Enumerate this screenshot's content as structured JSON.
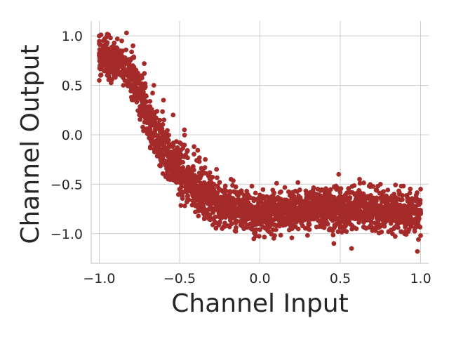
{
  "chart_data": {
    "type": "scatter",
    "title": "",
    "xlabel": "Channel Input",
    "ylabel": "Channel Output",
    "xlim": [
      -1.05,
      1.05
    ],
    "ylim": [
      -1.3,
      1.15
    ],
    "grid": true,
    "legend": "none",
    "color": "#a52a2a",
    "x_ticks": [
      -1.0,
      -0.5,
      0.0,
      0.5,
      1.0
    ],
    "x_tick_labels": [
      "−1.0",
      "−0.5",
      "0.0",
      "0.5",
      "1.0"
    ],
    "y_ticks": [
      1.0,
      0.5,
      0.0,
      -0.5,
      -1.0
    ],
    "y_tick_labels": [
      "1.0",
      "0.5",
      "0.0",
      "−0.5",
      "−1.0"
    ],
    "series": [
      {
        "x": [
          -1.0,
          -0.98,
          -0.95,
          -0.92,
          -0.9,
          -0.88,
          -0.85,
          -0.82,
          -0.8,
          -0.78,
          -0.75,
          -0.72,
          -0.7,
          -0.68,
          -0.65,
          -0.62,
          -0.6,
          -0.58,
          -0.55,
          -0.52,
          -0.5,
          -0.48,
          -0.45,
          -0.42,
          -0.4,
          -0.38,
          -0.35,
          -0.32,
          -0.3,
          -0.25,
          -0.2,
          -0.15,
          -0.1,
          -0.05,
          0.0,
          0.05,
          0.1,
          0.15,
          0.2,
          0.25,
          0.3,
          0.35,
          0.4,
          0.45,
          0.5,
          0.55,
          0.6,
          0.65,
          0.7,
          0.75,
          0.8,
          0.85,
          0.9,
          0.95,
          1.0,
          -1.0,
          -0.95,
          -0.9,
          -0.85,
          -0.8,
          -0.75,
          -0.7,
          -0.65,
          -0.6,
          -0.55,
          -0.5,
          -0.45,
          -0.4,
          -0.35,
          -0.3,
          -0.2,
          -0.1,
          0.0,
          0.1,
          0.2,
          0.3,
          0.4,
          0.5,
          0.6,
          0.7,
          0.8,
          0.9,
          1.0,
          -1.0,
          -0.93,
          -0.86,
          -0.79,
          -0.72,
          -0.66,
          -0.6,
          -0.54,
          -0.47,
          -0.41,
          -0.34,
          -0.27,
          -0.18,
          -0.05,
          0.08,
          0.22,
          0.36,
          0.49,
          0.62,
          0.75,
          0.88,
          1.0,
          -0.83,
          0.57,
          0.46,
          0.98
        ],
        "y": [
          0.8,
          0.79,
          0.78,
          0.77,
          0.76,
          0.74,
          0.71,
          0.66,
          0.6,
          0.52,
          0.42,
          0.3,
          0.2,
          0.1,
          0.0,
          -0.08,
          -0.14,
          -0.2,
          -0.25,
          -0.3,
          -0.35,
          -0.4,
          -0.45,
          -0.49,
          -0.53,
          -0.56,
          -0.6,
          -0.63,
          -0.66,
          -0.7,
          -0.73,
          -0.75,
          -0.77,
          -0.78,
          -0.78,
          -0.78,
          -0.77,
          -0.77,
          -0.76,
          -0.76,
          -0.75,
          -0.75,
          -0.74,
          -0.74,
          -0.73,
          -0.73,
          -0.73,
          -0.74,
          -0.75,
          -0.76,
          -0.77,
          -0.78,
          -0.78,
          -0.79,
          -0.8,
          0.55,
          0.6,
          0.58,
          0.5,
          0.38,
          0.2,
          0.02,
          -0.15,
          -0.28,
          -0.4,
          -0.55,
          -0.65,
          -0.72,
          -0.8,
          -0.85,
          -0.92,
          -0.95,
          -0.96,
          -0.96,
          -0.95,
          -0.95,
          -0.94,
          -0.94,
          -0.95,
          -0.97,
          -0.98,
          -1.0,
          -1.02,
          1.0,
          0.98,
          0.95,
          0.9,
          0.72,
          0.5,
          0.35,
          0.2,
          0.05,
          -0.12,
          -0.25,
          -0.35,
          -0.45,
          -0.52,
          -0.56,
          -0.57,
          -0.55,
          -0.4,
          -0.45,
          -0.5,
          -0.52,
          -0.55,
          1.03,
          -1.15,
          -1.1,
          -1.18
        ]
      }
    ]
  }
}
